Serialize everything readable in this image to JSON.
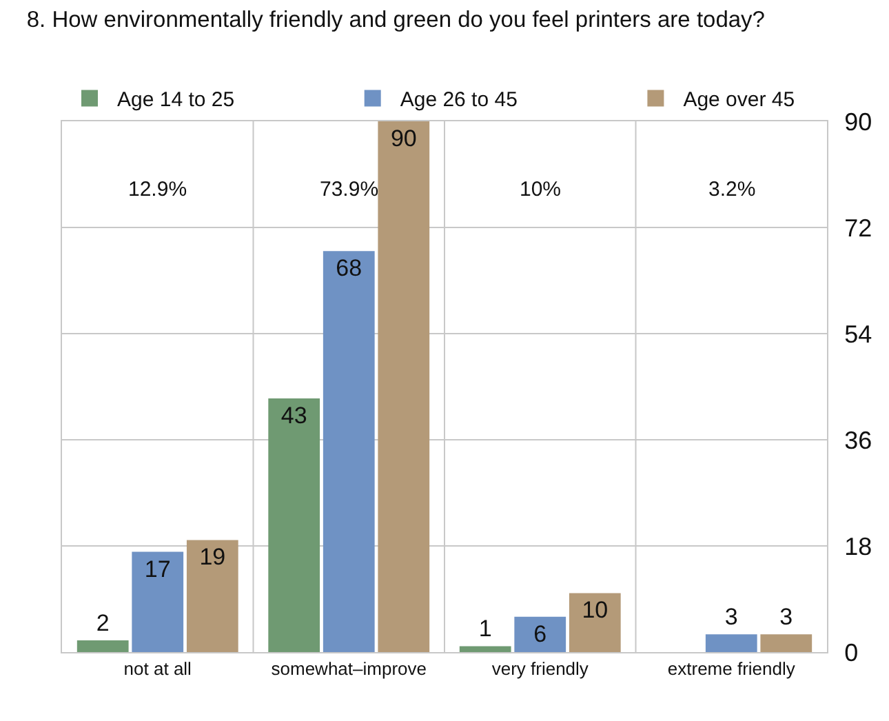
{
  "chart_data": {
    "type": "bar",
    "title": "8. How environmentally friendly and green do you feel printers are today?",
    "categories": [
      "not at all",
      "somewhat–improve",
      "very friendly",
      "extreme friendly"
    ],
    "series": [
      {
        "name": "Age 14 to 25",
        "color": "#6f9a72",
        "values": [
          2,
          43,
          1,
          null
        ]
      },
      {
        "name": "Age 26 to 45",
        "color": "#6f92c4",
        "values": [
          17,
          68,
          6,
          3
        ]
      },
      {
        "name": "Age over 45",
        "color": "#b49a78",
        "values": [
          19,
          90,
          10,
          3
        ]
      }
    ],
    "annotations": [
      "12.9%",
      "73.9%",
      "10%",
      "3.2%"
    ],
    "ylim": [
      0,
      90
    ],
    "yticks": [
      0,
      18,
      36,
      54,
      72,
      90
    ],
    "grid": true,
    "legend": "top",
    "data_labels": true
  }
}
